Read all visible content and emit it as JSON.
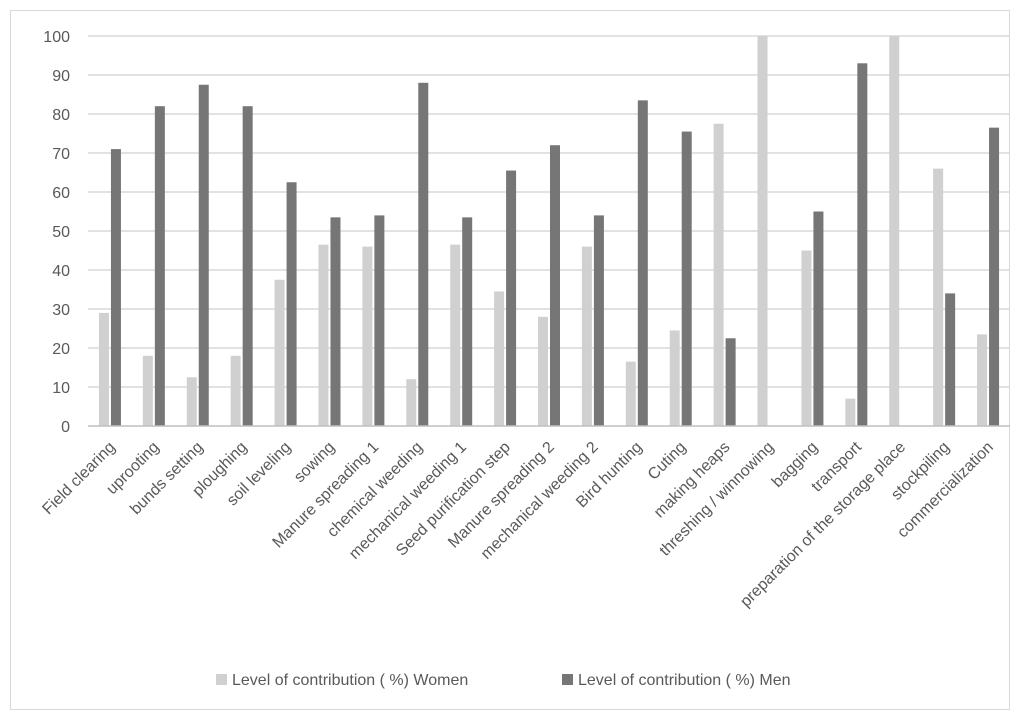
{
  "chart_data": {
    "type": "bar",
    "title": "",
    "xlabel": "",
    "ylabel": "",
    "ylim": [
      0,
      100
    ],
    "yticks": [
      0,
      10,
      20,
      30,
      40,
      50,
      60,
      70,
      80,
      90,
      100
    ],
    "grid": true,
    "legend_position": "bottom",
    "categories": [
      "Field clearing",
      "uprooting",
      "bunds setting",
      "ploughing",
      "soil leveling",
      "sowing",
      "Manure spreading 1",
      "chemical weeding",
      "mechanical weeding 1",
      "Seed purification step",
      "Manure spreading 2",
      "mechanical weeding 2",
      "Bird hunting",
      "Cuting",
      "making heaps",
      "threshing / winnowing",
      "bagging",
      "transport",
      "preparation of the storage place",
      "stockpiling",
      "commercialization"
    ],
    "series": [
      {
        "name": "Level of contribution ( %) Women",
        "color": "#d0d0d0",
        "values": [
          29,
          18,
          12.5,
          18,
          37.5,
          46.5,
          46,
          12,
          46.5,
          34.5,
          28,
          46,
          16.5,
          24.5,
          77.5,
          100,
          45,
          7,
          100,
          66,
          23.5
        ]
      },
      {
        "name": "Level of contribution ( %) Men",
        "color": "#767676",
        "values": [
          71,
          82,
          87.5,
          82,
          62.5,
          53.5,
          54,
          88,
          53.5,
          65.5,
          72,
          54,
          83.5,
          75.5,
          22.5,
          0,
          55,
          93,
          0,
          34,
          76.5
        ]
      }
    ]
  }
}
